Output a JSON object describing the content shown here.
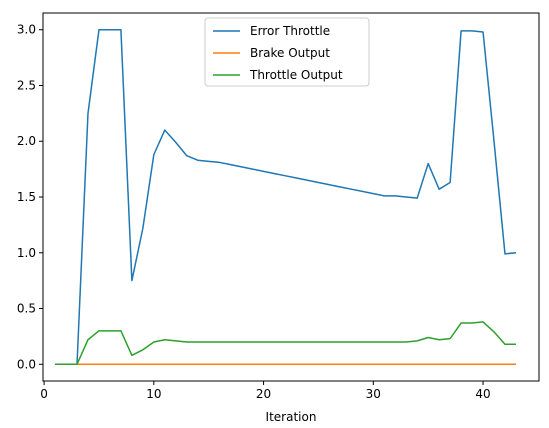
{
  "chart_data": {
    "type": "line",
    "title": "",
    "xlabel": "Iteration",
    "ylabel": "",
    "xlim": [
      -0.1,
      45.1
    ],
    "ylim": [
      -0.15,
      3.15
    ],
    "xticks": [
      0,
      10,
      20,
      30,
      40
    ],
    "xtick_labels": [
      "0",
      "10",
      "20",
      "30",
      "40"
    ],
    "yticks": [
      0.0,
      0.5,
      1.0,
      1.5,
      2.0,
      2.5,
      3.0
    ],
    "ytick_labels": [
      "0.0",
      "0.5",
      "1.0",
      "1.5",
      "2.0",
      "2.5",
      "3.0"
    ],
    "grid": false,
    "legend_position": "top-center",
    "x": [
      1,
      2,
      3,
      4,
      5,
      6,
      7,
      8,
      9,
      10,
      11,
      12,
      13,
      14,
      15,
      16,
      17,
      18,
      19,
      20,
      21,
      22,
      23,
      24,
      25,
      26,
      27,
      28,
      29,
      30,
      31,
      32,
      33,
      34,
      35,
      36,
      37,
      38,
      39,
      40,
      41,
      42,
      43
    ],
    "series": [
      {
        "name": "Error Throttle",
        "color": "#1f77b4",
        "values": [
          0,
          0,
          0,
          2.25,
          3.0,
          3.0,
          3.0,
          0.75,
          1.22,
          1.88,
          2.1,
          1.99,
          1.87,
          1.83,
          1.82,
          1.81,
          1.79,
          1.77,
          1.75,
          1.73,
          1.71,
          1.69,
          1.67,
          1.65,
          1.63,
          1.61,
          1.59,
          1.57,
          1.55,
          1.53,
          1.51,
          1.51,
          1.5,
          1.49,
          1.8,
          1.57,
          1.63,
          2.99,
          2.99,
          2.98,
          2.0,
          0.99,
          1.0
        ]
      },
      {
        "name": "Brake Output",
        "color": "#ff7f0e",
        "values": [
          0,
          0,
          0,
          0,
          0,
          0,
          0,
          0,
          0,
          0,
          0,
          0,
          0,
          0,
          0,
          0,
          0,
          0,
          0,
          0,
          0,
          0,
          0,
          0,
          0,
          0,
          0,
          0,
          0,
          0,
          0,
          0,
          0,
          0,
          0,
          0,
          0,
          0,
          0,
          0,
          0,
          0,
          0
        ]
      },
      {
        "name": "Throttle Output",
        "color": "#2ca02c",
        "values": [
          0,
          0,
          0,
          0.22,
          0.3,
          0.3,
          0.3,
          0.08,
          0.13,
          0.2,
          0.22,
          0.21,
          0.2,
          0.2,
          0.2,
          0.2,
          0.2,
          0.2,
          0.2,
          0.2,
          0.2,
          0.2,
          0.2,
          0.2,
          0.2,
          0.2,
          0.2,
          0.2,
          0.2,
          0.2,
          0.2,
          0.2,
          0.2,
          0.21,
          0.24,
          0.22,
          0.23,
          0.37,
          0.37,
          0.38,
          0.29,
          0.18,
          0.18
        ]
      }
    ]
  }
}
